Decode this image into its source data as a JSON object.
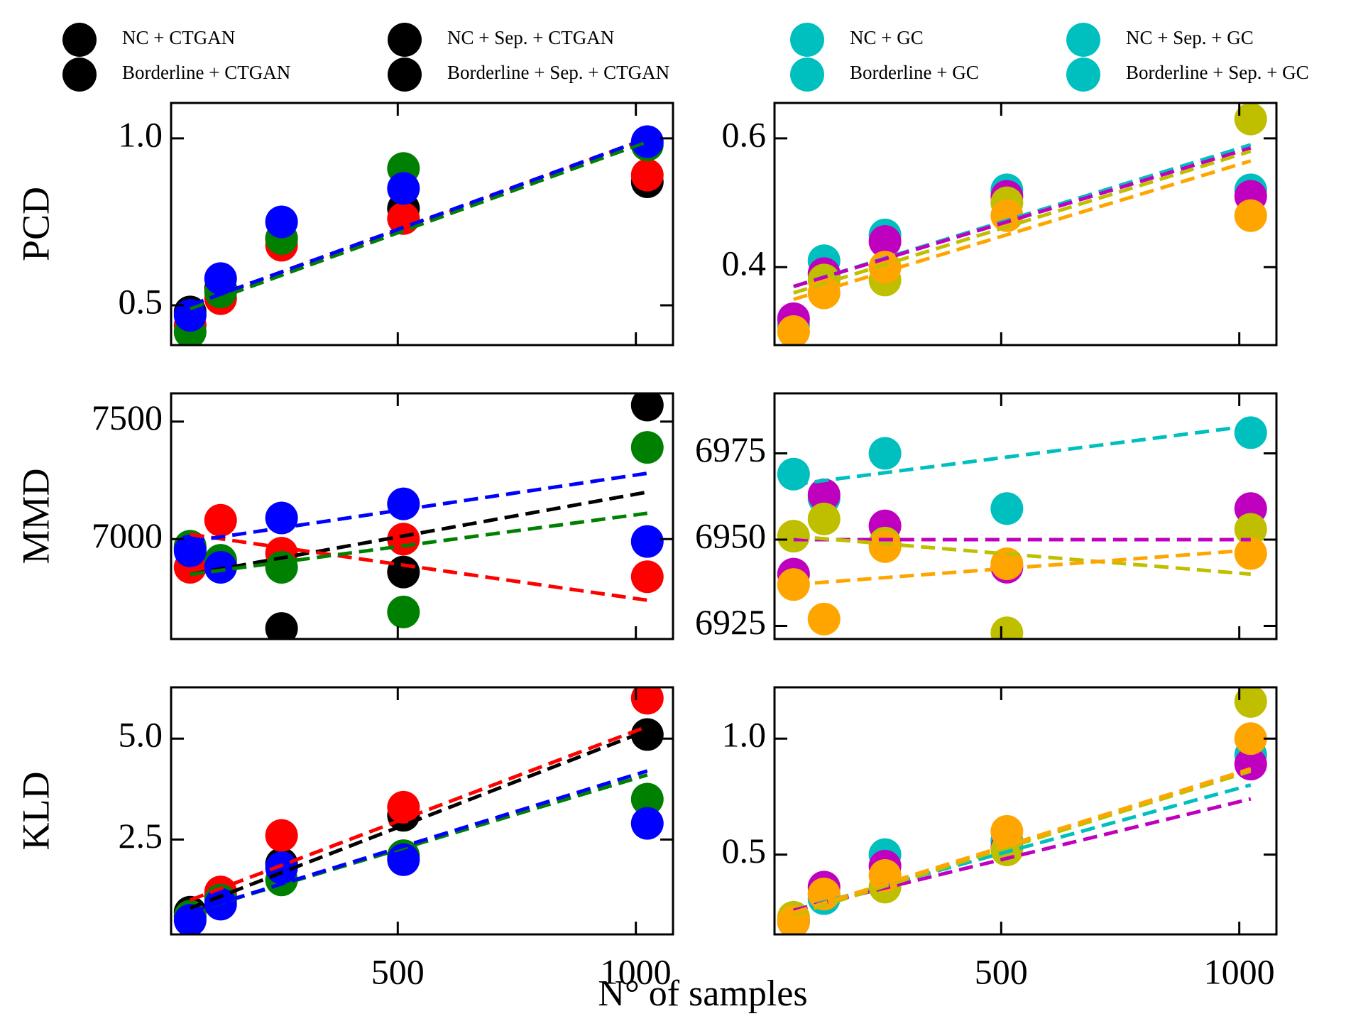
{
  "legend": [
    {
      "label": "NC + CTGAN",
      "color": "#000000"
    },
    {
      "label": "Borderline + CTGAN",
      "color": "#000000"
    },
    {
      "label": "NC + Sep. + CTGAN",
      "color": "#000000"
    },
    {
      "label": "Borderline + Sep. + CTGAN",
      "color": "#000000"
    },
    {
      "label": "NC + GC",
      "color": "#00bfbf"
    },
    {
      "label": "Borderline + GC",
      "color": "#00bfbf"
    },
    {
      "label": "NC + Sep. + GC",
      "color": "#00bfbf"
    },
    {
      "label": "Borderline + Sep. + GC",
      "color": "#00bfbf"
    }
  ],
  "xlabel": "N° of samples",
  "chart_data": [
    {
      "type": "scatter",
      "ylabel": "PCD",
      "x": [
        64,
        128,
        256,
        512,
        1024
      ],
      "xlim": [
        24,
        1078
      ],
      "xticks": [
        500,
        1000
      ],
      "xticklabels": false,
      "ylim": [
        0.381,
        1.106
      ],
      "yticks": [
        0.5,
        {
          "value": 1,
          "label": "1.0"
        }
      ],
      "series": [
        {
          "color": "#000000",
          "values": [
            0.48,
            0.55,
            0.7,
            0.79,
            0.87
          ],
          "fit": [
            0.5,
            1.0
          ]
        },
        {
          "color": "#ff0000",
          "values": [
            0.44,
            0.52,
            0.68,
            0.76,
            0.89
          ],
          "fit": [
            0.49,
            1.0
          ]
        },
        {
          "color": "#008000",
          "values": [
            0.42,
            0.54,
            0.7,
            0.91,
            0.98
          ],
          "fit": [
            0.49,
            0.99
          ]
        },
        {
          "color": "#0000ff",
          "values": [
            0.47,
            0.58,
            0.75,
            0.85,
            0.99
          ],
          "fit": [
            0.5,
            1.0
          ]
        }
      ]
    },
    {
      "type": "scatter",
      "x": [
        64,
        128,
        256,
        512,
        1024
      ],
      "xlim": [
        24,
        1078
      ],
      "xticks": [
        500,
        1000
      ],
      "xticklabels": false,
      "ylim": [
        0.279,
        0.655
      ],
      "yticks": [
        0.4,
        0.6
      ],
      "series": [
        {
          "color": "#00bfbf",
          "values": [
            0.31,
            0.41,
            0.45,
            0.52,
            0.52
          ],
          "fit": [
            0.37,
            0.59
          ]
        },
        {
          "color": "#bf00bf",
          "values": [
            0.32,
            0.39,
            0.44,
            0.51,
            0.51
          ],
          "fit": [
            0.37,
            0.585
          ]
        },
        {
          "color": "#bfbf00",
          "values": [
            0.3,
            0.38,
            0.38,
            0.5,
            0.63
          ],
          "fit": [
            0.36,
            0.58
          ]
        },
        {
          "color": "#ffa500",
          "values": [
            0.3,
            0.36,
            0.4,
            0.48,
            0.48
          ],
          "fit": [
            0.35,
            0.565
          ]
        }
      ]
    },
    {
      "type": "scatter",
      "ylabel": "MMD",
      "x": [
        64,
        128,
        256,
        512,
        1024
      ],
      "xlim": [
        24,
        1078
      ],
      "xticks": [
        500,
        1000
      ],
      "xticklabels": false,
      "ylim": [
        6575,
        7620
      ],
      "yticks": [
        7000,
        7500
      ],
      "series": [
        {
          "color": "#000000",
          "values": [
            6960,
            6900,
            6620,
            6860,
            7570
          ],
          "fit": [
            6850,
            7200
          ]
        },
        {
          "color": "#ff0000",
          "values": [
            6880,
            7080,
            6940,
            7000,
            6840
          ],
          "fit": [
            7020,
            6740
          ]
        },
        {
          "color": "#008000",
          "values": [
            6970,
            6910,
            6880,
            6690,
            7390
          ],
          "fit": [
            6850,
            7110
          ]
        },
        {
          "color": "#0000ff",
          "values": [
            6950,
            6880,
            7090,
            7150,
            6990
          ],
          "fit": [
            6990,
            7280
          ]
        }
      ]
    },
    {
      "type": "scatter",
      "x": [
        64,
        128,
        256,
        512,
        1024
      ],
      "xlim": [
        24,
        1078
      ],
      "xticks": [
        500,
        1000
      ],
      "xticklabels": false,
      "ylim": [
        6921.2,
        6992.4
      ],
      "yticks": [
        6925,
        6950,
        6975
      ],
      "series": [
        {
          "color": "#00bfbf",
          "values": [
            6969,
            6962,
            6975,
            6959,
            6981
          ],
          "fit": [
            6966,
            6983
          ]
        },
        {
          "color": "#bf00bf",
          "values": [
            6940,
            6963,
            6954,
            6942,
            6959
          ],
          "fit": [
            6950,
            6950
          ]
        },
        {
          "color": "#bfbf00",
          "values": [
            6951,
            6956,
            6949,
            6923,
            6953
          ],
          "fit": [
            6951,
            6940
          ]
        },
        {
          "color": "#ffa500",
          "values": [
            6937,
            6927,
            6948,
            6943,
            6946
          ],
          "fit": [
            6937,
            6947
          ]
        }
      ]
    },
    {
      "type": "scatter",
      "ylabel": "KLD",
      "x": [
        64,
        128,
        256,
        512,
        1024
      ],
      "xlim": [
        24,
        1078
      ],
      "xticks": [
        500,
        1000
      ],
      "xticklabels": true,
      "ylim": [
        0.15,
        6.27
      ],
      "yticks": [
        2.5,
        {
          "value": 5,
          "label": "5.0"
        }
      ],
      "series": [
        {
          "color": "#000000",
          "values": [
            0.7,
            1.1,
            1.9,
            3.1,
            5.1
          ],
          "fit": [
            0.8,
            5.2
          ]
        },
        {
          "color": "#ff0000",
          "values": [
            0.6,
            1.2,
            2.6,
            3.3,
            6.0
          ],
          "fit": [
            1.0,
            5.3
          ]
        },
        {
          "color": "#008000",
          "values": [
            0.6,
            1.0,
            1.5,
            2.1,
            3.5
          ],
          "fit": [
            0.7,
            4.1
          ]
        },
        {
          "color": "#0000ff",
          "values": [
            0.5,
            0.9,
            1.8,
            2.0,
            2.9
          ],
          "fit": [
            0.7,
            4.2
          ]
        }
      ]
    },
    {
      "type": "scatter",
      "x": [
        64,
        128,
        256,
        512,
        1024
      ],
      "xlim": [
        24,
        1078
      ],
      "xticks": [
        500,
        1000
      ],
      "xticklabels": true,
      "ylim": [
        0.156,
        1.221
      ],
      "yticks": [
        0.5,
        {
          "value": 1,
          "label": "1.0"
        }
      ],
      "series": [
        {
          "color": "#00bfbf",
          "values": [
            0.22,
            0.31,
            0.5,
            0.56,
            0.93
          ],
          "fit": [
            0.26,
            0.8
          ]
        },
        {
          "color": "#bf00bf",
          "values": [
            0.21,
            0.36,
            0.45,
            0.53,
            0.89
          ],
          "fit": [
            0.26,
            0.74
          ]
        },
        {
          "color": "#bfbf00",
          "values": [
            0.23,
            0.33,
            0.36,
            0.52,
            1.16
          ],
          "fit": [
            0.24,
            0.86
          ]
        },
        {
          "color": "#ffa500",
          "values": [
            0.21,
            0.33,
            0.41,
            0.6,
            1.0
          ],
          "fit": [
            0.25,
            0.87
          ]
        }
      ]
    }
  ]
}
